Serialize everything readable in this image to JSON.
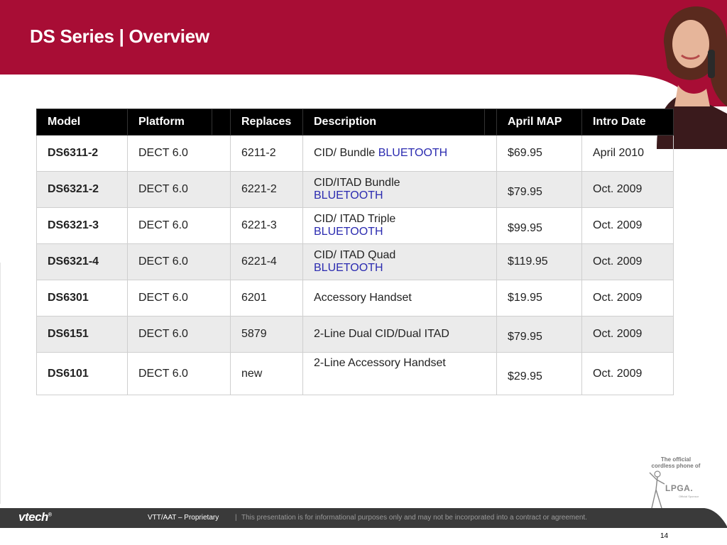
{
  "slide": {
    "title": "DS Series |  Overview",
    "page_number": "14"
  },
  "table": {
    "headers": [
      "Model",
      "Platform",
      "",
      "Replaces",
      "Description",
      "",
      "April  MAP",
      "Intro Date"
    ],
    "rows": [
      {
        "model": "DS6311-2",
        "platform": "DECT 6.0",
        "replaces": "6211-2",
        "desc": "CID/ Bundle ",
        "desc_bt": "BLUETOOTH",
        "map": "$69.95",
        "intro": "April 2010"
      },
      {
        "model": "DS6321-2",
        "platform": "DECT 6.0",
        "replaces": "6221-2",
        "desc": "CID/ITAD Bundle",
        "desc_bt": "BLUETOOTH",
        "map": "$79.95",
        "intro": "Oct. 2009"
      },
      {
        "model": "DS6321-3",
        "platform": "DECT 6.0",
        "replaces": "6221-3",
        "desc": "CID/ ITAD Triple",
        "desc_bt": "BLUETOOTH",
        "map": "$99.95",
        "intro": "Oct. 2009"
      },
      {
        "model": "DS6321-4",
        "platform": "DECT 6.0",
        "replaces": "6221-4",
        "desc": "CID/ ITAD Quad",
        "desc_bt": "BLUETOOTH",
        "map": "$119.95",
        "intro": "Oct. 2009"
      },
      {
        "model": "DS6301",
        "platform": "DECT 6.0",
        "replaces": "6201",
        "desc": "Accessory Handset",
        "map": "$19.95",
        "intro": "Oct. 2009"
      },
      {
        "model": "DS6151",
        "platform": "DECT 6.0",
        "replaces": "5879",
        "desc": "2-Line Dual CID/Dual ITAD",
        "map": "$79.95",
        "intro": "Oct. 2009"
      },
      {
        "model": "DS6101",
        "platform": "DECT 6.0",
        "replaces": "new",
        "desc": "2-Line Accessory Handset",
        "map": "$29.95",
        "intro": "Oct.  2009"
      }
    ]
  },
  "badge": {
    "line1": "The official",
    "line2": "cordless phone of",
    "logo": "LPGA.",
    "sub": "Official Sponsor"
  },
  "footer": {
    "logo": "vtech",
    "logo_mark": "®",
    "proprietary": "VTT/AAT – Proprietary",
    "separator": "|",
    "disclaimer": "This presentation is for informational purposes only and may not be incorporated into a contract or agreement."
  },
  "colors": {
    "brand": "#a80d35",
    "footer_bg": "#3a3a3a",
    "bluetooth": "#2b2bb0"
  }
}
